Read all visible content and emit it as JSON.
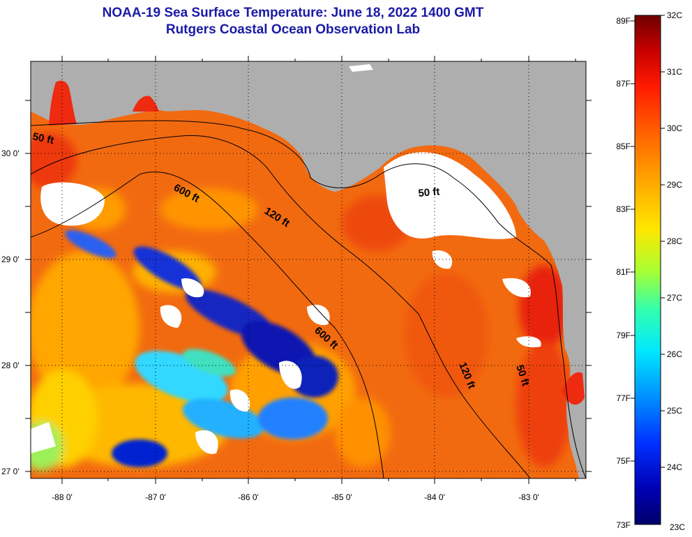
{
  "title": {
    "line1": "NOAA-19 Sea Surface Temperature:  June 18, 2022 1400 GMT",
    "line2": "Rutgers Coastal Ocean Observation Lab"
  },
  "axes": {
    "x_ticks": [
      "-88 0'",
      "-87 0'",
      "-86 0'",
      "-85 0'",
      "-84 0'",
      "-83 0'"
    ],
    "y_ticks": [
      "30 0'",
      "29 0'",
      "28 0'",
      "27 0'"
    ]
  },
  "isobaths": [
    "50 ft",
    "600 ft",
    "120 ft",
    "50 ft",
    "600 ft",
    "120 ft",
    "50 ft"
  ],
  "colorbar": {
    "fahrenheit": [
      "89F",
      "87F",
      "85F",
      "83F",
      "81F",
      "79F",
      "77F",
      "75F",
      "73F"
    ],
    "celsius": [
      "32C",
      "31C",
      "30C",
      "29C",
      "28C",
      "27C",
      "26C",
      "25C",
      "24C",
      "23C"
    ]
  },
  "colors": {
    "land": "#aeaeae",
    "title": "#1a1aa6",
    "warm_sea": "#f26a10",
    "cold_sea": "#1010a0"
  }
}
